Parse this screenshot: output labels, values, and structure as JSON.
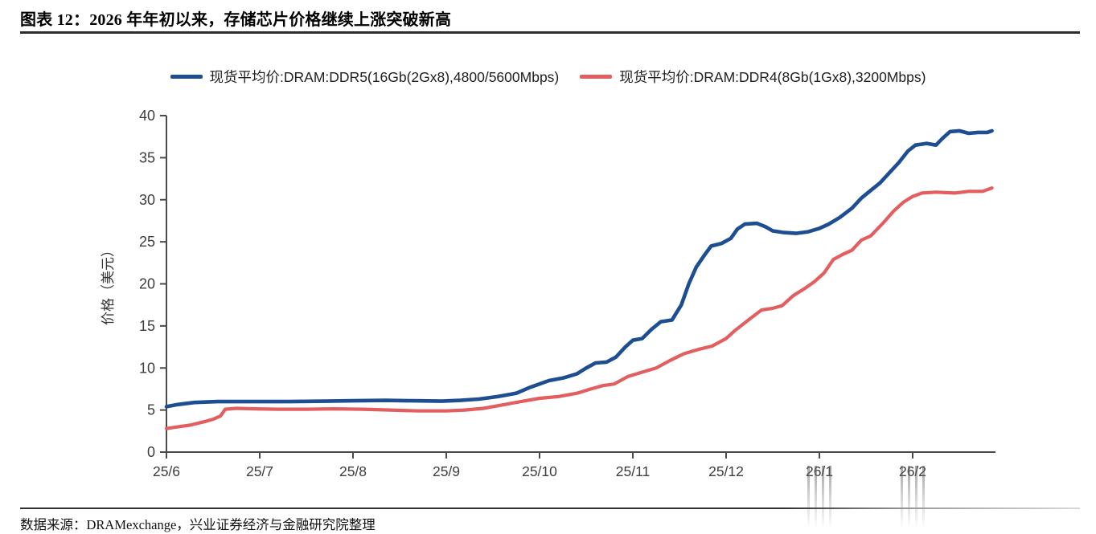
{
  "figure": {
    "title": "图表 12：2026 年年初以来，存储芯片价格继续上涨突破新高",
    "source": "数据来源：DRAMexchange，兴业证券经济与金融研究院整理"
  },
  "chart_data": {
    "type": "line",
    "title": "",
    "xlabel": "",
    "ylabel": "价格（美元）",
    "ylim": [
      0,
      40
    ],
    "yticks": [
      0,
      5,
      10,
      15,
      20,
      25,
      30,
      35,
      40
    ],
    "xticks": [
      "25/6",
      "25/7",
      "25/8",
      "25/9",
      "25/10",
      "25/11",
      "25/12",
      "26/1",
      "26/2"
    ],
    "x_unit": "months_since_25_6",
    "grid": false,
    "legend_position": "top-center",
    "series": [
      {
        "name": "现货平均价:DRAM:DDR5(16Gb(2Gx8),4800/5600Mbps)",
        "color": "#1d4e91",
        "points": [
          [
            0,
            5.4
          ],
          [
            0.12,
            5.65
          ],
          [
            0.3,
            5.9
          ],
          [
            0.55,
            6.0
          ],
          [
            0.9,
            6.0
          ],
          [
            1.3,
            6.0
          ],
          [
            1.7,
            6.05
          ],
          [
            2.0,
            6.1
          ],
          [
            2.35,
            6.15
          ],
          [
            2.65,
            6.1
          ],
          [
            2.95,
            6.05
          ],
          [
            3.15,
            6.15
          ],
          [
            3.35,
            6.3
          ],
          [
            3.55,
            6.6
          ],
          [
            3.75,
            7.0
          ],
          [
            3.9,
            7.7
          ],
          [
            4.0,
            8.1
          ],
          [
            4.1,
            8.5
          ],
          [
            4.25,
            8.8
          ],
          [
            4.4,
            9.3
          ],
          [
            4.5,
            10.0
          ],
          [
            4.6,
            10.6
          ],
          [
            4.72,
            10.7
          ],
          [
            4.82,
            11.3
          ],
          [
            4.92,
            12.5
          ],
          [
            5.0,
            13.3
          ],
          [
            5.1,
            13.5
          ],
          [
            5.2,
            14.6
          ],
          [
            5.3,
            15.5
          ],
          [
            5.42,
            15.7
          ],
          [
            5.52,
            17.5
          ],
          [
            5.6,
            20.0
          ],
          [
            5.68,
            22.0
          ],
          [
            5.76,
            23.3
          ],
          [
            5.84,
            24.5
          ],
          [
            5.95,
            24.8
          ],
          [
            6.05,
            25.4
          ],
          [
            6.12,
            26.5
          ],
          [
            6.2,
            27.1
          ],
          [
            6.33,
            27.2
          ],
          [
            6.42,
            26.8
          ],
          [
            6.5,
            26.3
          ],
          [
            6.62,
            26.1
          ],
          [
            6.75,
            26.0
          ],
          [
            6.88,
            26.2
          ],
          [
            7.0,
            26.6
          ],
          [
            7.1,
            27.1
          ],
          [
            7.22,
            27.9
          ],
          [
            7.35,
            29.0
          ],
          [
            7.45,
            30.2
          ],
          [
            7.55,
            31.1
          ],
          [
            7.65,
            32.0
          ],
          [
            7.75,
            33.2
          ],
          [
            7.85,
            34.4
          ],
          [
            7.95,
            35.8
          ],
          [
            8.03,
            36.5
          ],
          [
            8.15,
            36.7
          ],
          [
            8.25,
            36.5
          ],
          [
            8.32,
            37.3
          ],
          [
            8.4,
            38.1
          ],
          [
            8.5,
            38.2
          ],
          [
            8.6,
            37.9
          ],
          [
            8.7,
            38.0
          ],
          [
            8.8,
            38.0
          ],
          [
            8.85,
            38.2
          ]
        ]
      },
      {
        "name": "现货平均价:DRAM:DDR4(8Gb(1Gx8),3200Mbps)",
        "color": "#e25e5f",
        "points": [
          [
            0,
            2.8
          ],
          [
            0.12,
            3.0
          ],
          [
            0.25,
            3.2
          ],
          [
            0.4,
            3.6
          ],
          [
            0.5,
            3.9
          ],
          [
            0.58,
            4.3
          ],
          [
            0.63,
            5.1
          ],
          [
            0.75,
            5.2
          ],
          [
            0.95,
            5.15
          ],
          [
            1.2,
            5.1
          ],
          [
            1.5,
            5.1
          ],
          [
            1.8,
            5.15
          ],
          [
            2.1,
            5.1
          ],
          [
            2.4,
            5.0
          ],
          [
            2.7,
            4.9
          ],
          [
            3.0,
            4.9
          ],
          [
            3.2,
            5.0
          ],
          [
            3.4,
            5.2
          ],
          [
            3.6,
            5.6
          ],
          [
            3.8,
            6.0
          ],
          [
            4.0,
            6.4
          ],
          [
            4.2,
            6.6
          ],
          [
            4.4,
            7.0
          ],
          [
            4.55,
            7.5
          ],
          [
            4.68,
            7.9
          ],
          [
            4.8,
            8.1
          ],
          [
            4.95,
            9.0
          ],
          [
            5.1,
            9.5
          ],
          [
            5.25,
            10.0
          ],
          [
            5.4,
            10.9
          ],
          [
            5.55,
            11.7
          ],
          [
            5.7,
            12.2
          ],
          [
            5.85,
            12.6
          ],
          [
            6.0,
            13.5
          ],
          [
            6.1,
            14.5
          ],
          [
            6.25,
            15.8
          ],
          [
            6.38,
            16.9
          ],
          [
            6.5,
            17.1
          ],
          [
            6.6,
            17.4
          ],
          [
            6.72,
            18.6
          ],
          [
            6.85,
            19.5
          ],
          [
            6.95,
            20.3
          ],
          [
            7.05,
            21.3
          ],
          [
            7.15,
            22.9
          ],
          [
            7.25,
            23.5
          ],
          [
            7.35,
            24.0
          ],
          [
            7.45,
            25.2
          ],
          [
            7.55,
            25.7
          ],
          [
            7.68,
            27.2
          ],
          [
            7.8,
            28.7
          ],
          [
            7.9,
            29.7
          ],
          [
            8.0,
            30.4
          ],
          [
            8.1,
            30.8
          ],
          [
            8.25,
            30.9
          ],
          [
            8.45,
            30.8
          ],
          [
            8.6,
            31.0
          ],
          [
            8.75,
            31.0
          ],
          [
            8.85,
            31.4
          ]
        ]
      }
    ]
  }
}
